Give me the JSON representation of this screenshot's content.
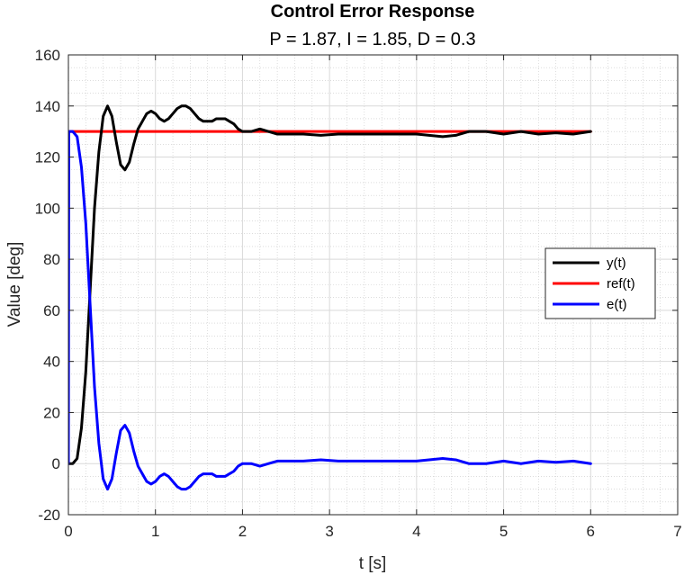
{
  "colors": {
    "y": "#000000",
    "ref": "#ff0000",
    "e": "#0000ff"
  },
  "chart_data": {
    "type": "line",
    "title": "Control Error Response",
    "subtitle": "P = 1.87, I = 1.85, D = 0.3",
    "xlabel": "t [s]",
    "ylabel": "Value [deg]",
    "xlim": [
      0,
      7
    ],
    "ylim": [
      -20,
      160
    ],
    "xticks": [
      0,
      1,
      2,
      3,
      4,
      5,
      6,
      7
    ],
    "yticks": [
      -20,
      0,
      20,
      40,
      60,
      80,
      100,
      120,
      140,
      160
    ],
    "grid": true,
    "minor_grid": true,
    "legend_position": "right",
    "series": [
      {
        "name": "y(t)",
        "color": "#000000",
        "x": [
          0,
          0.05,
          0.1,
          0.15,
          0.2,
          0.25,
          0.3,
          0.35,
          0.4,
          0.45,
          0.5,
          0.55,
          0.6,
          0.65,
          0.7,
          0.75,
          0.8,
          0.85,
          0.9,
          0.95,
          1.0,
          1.05,
          1.1,
          1.15,
          1.2,
          1.25,
          1.3,
          1.35,
          1.4,
          1.45,
          1.5,
          1.55,
          1.6,
          1.65,
          1.7,
          1.75,
          1.8,
          1.85,
          1.9,
          1.95,
          2.0,
          2.1,
          2.2,
          2.3,
          2.4,
          2.5,
          2.7,
          2.9,
          3.1,
          3.4,
          3.7,
          4.0,
          4.3,
          4.45,
          4.6,
          4.8,
          5.0,
          5.2,
          5.4,
          5.6,
          5.8,
          6.0
        ],
        "y": [
          0,
          0,
          2,
          14,
          36,
          68,
          100,
          122,
          136,
          140,
          136,
          126,
          117,
          115,
          118,
          125,
          131,
          134,
          137,
          138,
          137,
          135,
          134,
          135,
          137,
          139,
          140,
          140,
          139,
          137,
          135,
          134,
          134,
          134,
          135,
          135,
          135,
          134,
          133,
          131,
          130,
          130,
          131,
          130,
          129,
          129,
          129,
          128.5,
          129,
          129,
          129,
          129,
          128,
          128.5,
          130,
          130,
          129,
          130,
          129,
          129.5,
          129,
          130
        ]
      },
      {
        "name": "ref(t)",
        "color": "#ff0000",
        "x": [
          0,
          6.0
        ],
        "y": [
          130,
          130
        ]
      },
      {
        "name": "e(t)",
        "color": "#0000ff",
        "x": [
          0,
          0.005,
          0.02,
          0.05,
          0.1,
          0.15,
          0.2,
          0.25,
          0.3,
          0.35,
          0.4,
          0.45,
          0.5,
          0.55,
          0.6,
          0.65,
          0.7,
          0.75,
          0.8,
          0.85,
          0.9,
          0.95,
          1.0,
          1.05,
          1.1,
          1.15,
          1.2,
          1.25,
          1.3,
          1.35,
          1.4,
          1.45,
          1.5,
          1.55,
          1.6,
          1.65,
          1.7,
          1.75,
          1.8,
          1.85,
          1.9,
          1.95,
          2.0,
          2.1,
          2.2,
          2.3,
          2.4,
          2.5,
          2.7,
          2.9,
          3.1,
          3.4,
          3.7,
          4.0,
          4.3,
          4.45,
          4.6,
          4.8,
          5.0,
          5.2,
          5.4,
          5.6,
          5.8,
          6.0
        ],
        "y": [
          0,
          130,
          130,
          130,
          128,
          116,
          94,
          62,
          30,
          8,
          -6,
          -10,
          -6,
          4,
          13,
          15,
          12,
          5,
          -1,
          -4,
          -7,
          -8,
          -7,
          -5,
          -4,
          -5,
          -7,
          -9,
          -10,
          -10,
          -9,
          -7,
          -5,
          -4,
          -4,
          -4,
          -5,
          -5,
          -5,
          -4,
          -3,
          -1,
          0,
          0,
          -1,
          0,
          1,
          1,
          1,
          1.5,
          1,
          1,
          1,
          1,
          2,
          1.5,
          0,
          0,
          1,
          0,
          1,
          0.5,
          1,
          0
        ]
      }
    ]
  }
}
